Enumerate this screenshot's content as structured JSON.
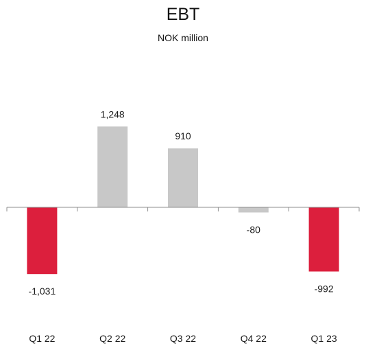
{
  "chart_data": {
    "type": "bar",
    "title": "EBT",
    "subtitle": "NOK million",
    "xlabel": "",
    "ylabel": "",
    "categories": [
      "Q1 22",
      "Q2 22",
      "Q3 22",
      "Q4 22",
      "Q1 23"
    ],
    "values": [
      -1031,
      1248,
      910,
      -80,
      -992
    ],
    "value_labels": [
      "-1,031",
      "1,248",
      "910",
      "-80",
      "-992"
    ],
    "bar_colors": [
      "#dc1f3d",
      "#c8c8c8",
      "#c8c8c8",
      "#c8c8c8",
      "#dc1f3d"
    ],
    "ylim": [
      -1300,
      1450
    ],
    "grid": false,
    "legend": "none"
  }
}
